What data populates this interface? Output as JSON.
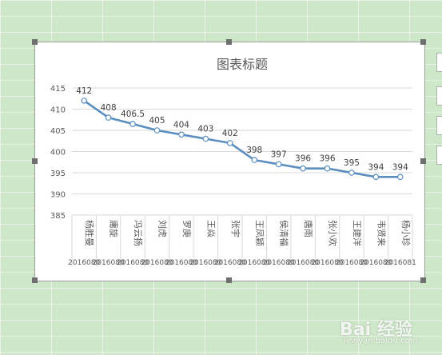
{
  "chart_data": {
    "type": "line",
    "title": "图表标题",
    "categories": [
      "杨胜曼",
      "庸旋",
      "冯云扬",
      "刘虎",
      "罗庚",
      "王焱",
      "张宇",
      "王凤颖",
      "侯清福",
      "唐雨",
      "张小欢",
      "王建洋",
      "韦贤来",
      "杨小珍"
    ],
    "ids": [
      "2016080",
      "2016080",
      "2016080",
      "2016080",
      "2016080",
      "2016080",
      "2016080",
      "2016080",
      "2016080",
      "2016080",
      "2016080",
      "2016080",
      "2016080",
      "2016081"
    ],
    "values": [
      412,
      408,
      406.5,
      405,
      404,
      403,
      402,
      398,
      397,
      396,
      396,
      395,
      394,
      394
    ],
    "y_ticks": [
      "385",
      "390",
      "395",
      "400",
      "405",
      "410",
      "415"
    ],
    "ylim": [
      385,
      415
    ],
    "grid": true,
    "legend": "none",
    "line_color": "#5b8fbf"
  },
  "watermark": {
    "brand": "Bai 经验",
    "url": "jingyan.baidu.com"
  }
}
